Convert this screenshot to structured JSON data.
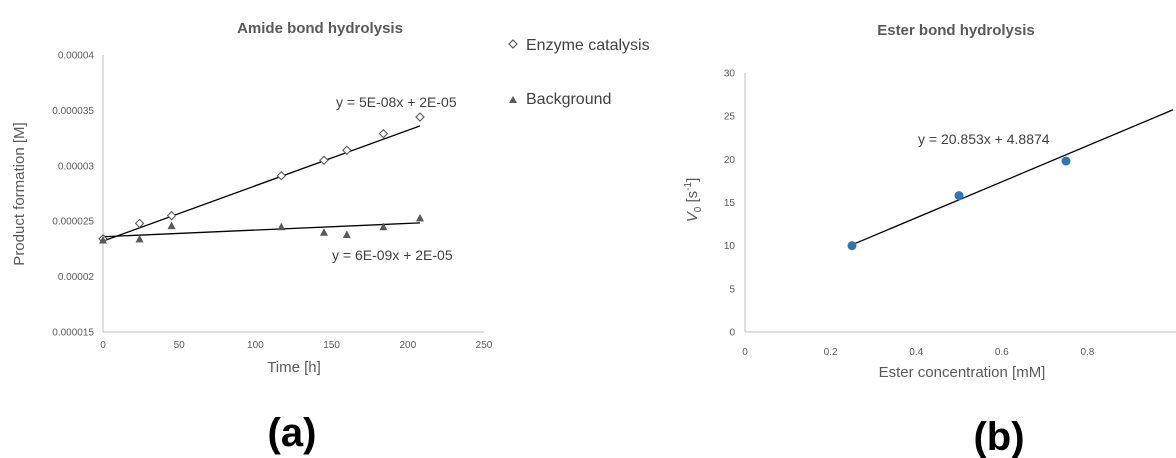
{
  "chart_data": [
    {
      "type": "scatter",
      "title": "Amide bond hydrolysis",
      "xlabel": "Time [h]",
      "ylabel": "Product formation [M]",
      "xlim": [
        0,
        250
      ],
      "ylim": [
        1.5e-05,
        4e-05
      ],
      "x_ticks": [
        "0",
        "50",
        "100",
        "150",
        "200",
        "250"
      ],
      "y_ticks": [
        "0.000015",
        "0.00002",
        "0.000025",
        "0.00003",
        "0.000035",
        "0.00004"
      ],
      "grid": false,
      "legend": "right",
      "series": [
        {
          "name": "Enzyme catalysis",
          "marker": "diamond-open",
          "x": [
            0,
            24,
            45,
            117,
            145,
            160,
            184,
            208
          ],
          "y": [
            2.34e-05,
            2.48e-05,
            2.55e-05,
            2.91e-05,
            3.05e-05,
            3.14e-05,
            3.29e-05,
            3.44e-05
          ],
          "trendline": {
            "slope": 5e-08,
            "intercept": 2.32e-05,
            "x_range": [
              0,
              208
            ],
            "label": "y = 5E-08x + 2E-05"
          }
        },
        {
          "name": "Background",
          "marker": "triangle-filled",
          "x": [
            0,
            24,
            45,
            117,
            145,
            160,
            184,
            208
          ],
          "y": [
            2.33e-05,
            2.34e-05,
            2.46e-05,
            2.45e-05,
            2.4e-05,
            2.38e-05,
            2.45e-05,
            2.53e-05
          ],
          "trendline": {
            "slope": 6e-09,
            "intercept": 2.36e-05,
            "x_range": [
              0,
              208
            ],
            "label": "y = 6E-09x + 2E-05"
          }
        }
      ],
      "panel_label": "(a)"
    },
    {
      "type": "scatter",
      "title": "Ester bond hydrolysis",
      "xlabel": "Ester concentration [mM]",
      "ylabel_main": "V",
      "ylabel_sub": "0",
      "ylabel_unit": " [s",
      "ylabel_sup": "-1",
      "ylabel_close": "]",
      "xlim": [
        0,
        1.0
      ],
      "ylim": [
        0,
        30
      ],
      "x_ticks": [
        "0",
        "0.2",
        "0.4",
        "0.6",
        "0.8"
      ],
      "y_ticks": [
        "0",
        "5",
        "10",
        "15",
        "20",
        "25",
        "30"
      ],
      "grid": false,
      "series": [
        {
          "marker": "circle-filled",
          "color": "#2e75b6",
          "x": [
            0.25,
            0.5,
            0.75
          ],
          "y": [
            10.0,
            15.8,
            19.8
          ],
          "trendline": {
            "slope": 20.853,
            "intercept": 4.8874,
            "x_range": [
              0.25,
              1.0
            ],
            "label": "y = 20.853x + 4.8874"
          }
        }
      ],
      "panel_label": "(b)"
    }
  ]
}
